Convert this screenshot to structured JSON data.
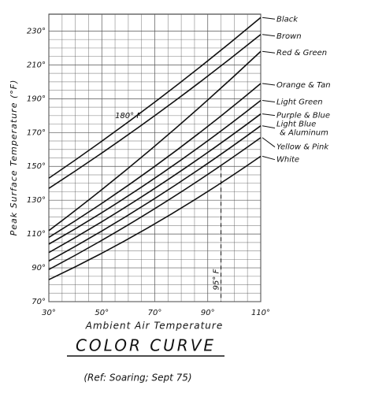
{
  "chart_data": {
    "type": "line",
    "title": "COLOR CURVE",
    "subtitle": "(Ref: Soaring; Sept 75)",
    "x_label": "Ambient Air Temperature",
    "y_label": "Peak Surface Temperature (°F)",
    "x": [
      30,
      70,
      110
    ],
    "xlim": [
      30,
      110
    ],
    "xticks": [
      {
        "value": 30,
        "label": "30°"
      },
      {
        "value": 50,
        "label": "50°"
      },
      {
        "value": 70,
        "label": "70°"
      },
      {
        "value": 90,
        "label": "90°"
      },
      {
        "value": 110,
        "label": "110°"
      }
    ],
    "ylim": [
      70,
      240
    ],
    "yticks": [
      {
        "value": 70,
        "label": "70°"
      },
      {
        "value": 90,
        "label": "90°"
      },
      {
        "value": 110,
        "label": "110°"
      },
      {
        "value": 130,
        "label": "130°"
      },
      {
        "value": 150,
        "label": "150°"
      },
      {
        "value": 170,
        "label": "170°"
      },
      {
        "value": 190,
        "label": "190°"
      },
      {
        "value": 210,
        "label": "210°"
      },
      {
        "value": 230,
        "label": "230°"
      }
    ],
    "grid": true,
    "series": [
      {
        "name": "Black",
        "color": "#111111",
        "values": [
          143,
          188,
          238
        ]
      },
      {
        "name": "Brown",
        "color": "#111111",
        "values": [
          137,
          180,
          228
        ]
      },
      {
        "name": "Red & Green",
        "color": "#111111",
        "values": [
          112,
          162,
          218
        ]
      },
      {
        "name": "Orange & Tan",
        "color": "#111111",
        "values": [
          108,
          150,
          199
        ]
      },
      {
        "name": "Light Green",
        "color": "#111111",
        "values": [
          104,
          143,
          189
        ]
      },
      {
        "name": "Purple & Blue",
        "color": "#111111",
        "values": [
          99,
          137,
          181
        ]
      },
      {
        "name": "Light Blue & Aluminum",
        "color": "#111111",
        "values": [
          94,
          131,
          174
        ]
      },
      {
        "name": "Yellow & Pink",
        "color": "#111111",
        "values": [
          89,
          125,
          167
        ]
      },
      {
        "name": "White",
        "color": "#111111",
        "values": [
          83,
          116,
          156
        ]
      }
    ],
    "annotations": [
      {
        "text": "180° F"
      },
      {
        "text": "95° F",
        "x": 95
      }
    ]
  }
}
